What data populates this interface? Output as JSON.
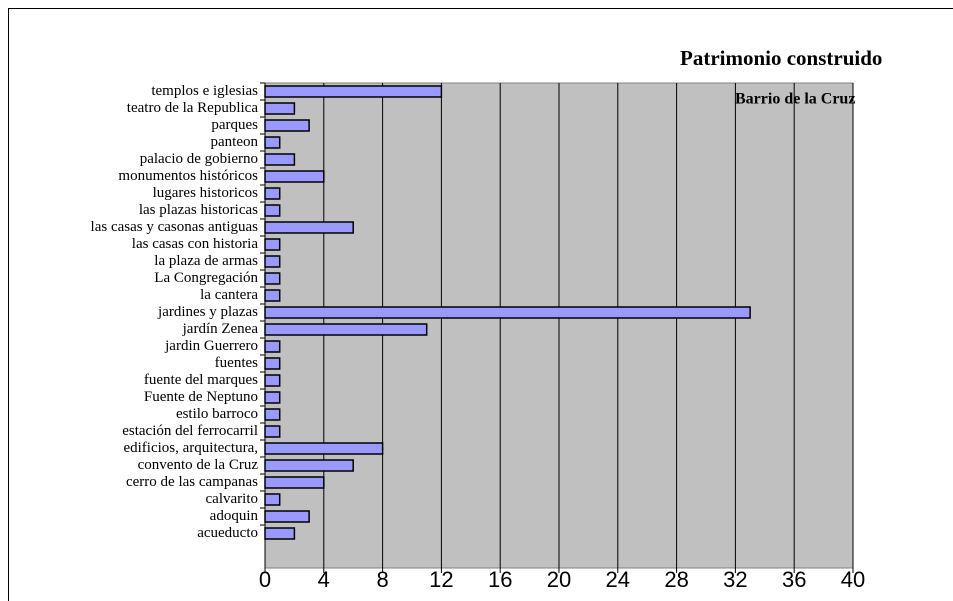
{
  "chart_data": {
    "type": "bar",
    "orientation": "horizontal",
    "title": "Patrimonio construido",
    "subtitle": "Barrio de la Cruz",
    "categories": [
      "templos e iglesias",
      "teatro de la Republica",
      "parques",
      "panteon",
      "palacio de gobierno",
      "monumentos históricos",
      "lugares historicos",
      "las plazas historicas",
      "las casas y casonas antiguas",
      "las casas con historia",
      "la plaza de armas",
      "La Congregación",
      "la cantera",
      "jardines y plazas",
      "jardín Zenea",
      "jardin Guerrero",
      "fuentes",
      "fuente del marques",
      "Fuente de Neptuno",
      "estilo barroco",
      "estación del ferrocarril",
      "edificios, arquitectura,",
      "convento de la Cruz",
      "cerro de las campanas",
      "calvarito",
      "adoquin",
      "acueducto"
    ],
    "values": [
      12,
      2,
      3,
      1,
      2,
      4,
      1,
      1,
      6,
      1,
      1,
      1,
      1,
      33,
      11,
      1,
      1,
      1,
      1,
      1,
      1,
      8,
      6,
      4,
      1,
      3,
      2
    ],
    "color": "#9999ff",
    "xlim": [
      0,
      40
    ],
    "xticks": [
      0,
      4,
      8,
      12,
      16,
      20,
      24,
      28,
      32,
      36,
      40
    ],
    "grid": true
  }
}
